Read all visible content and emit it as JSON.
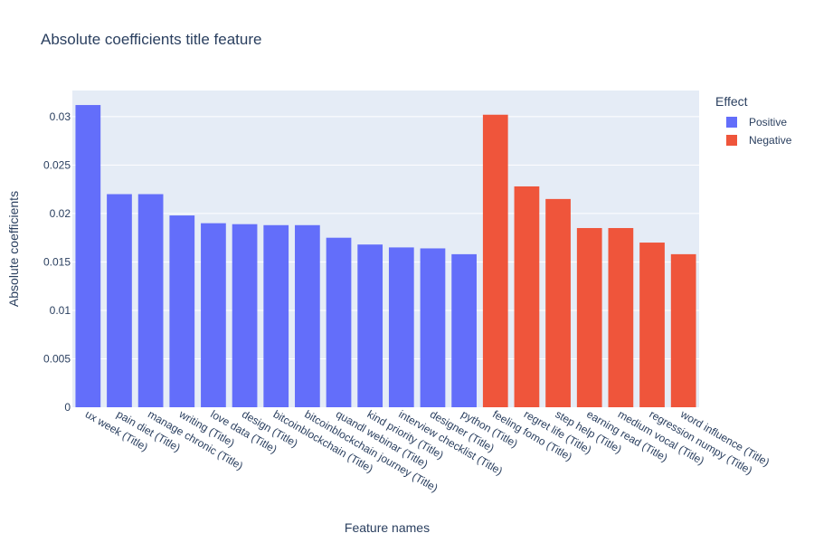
{
  "chart_data": {
    "type": "bar",
    "title": "Absolute coefficients title feature",
    "xlabel": "Feature names",
    "ylabel": "Absolute coefficients",
    "ylim": [
      0,
      0.0327
    ],
    "yticks": [
      {
        "value": 0,
        "label": "0"
      },
      {
        "value": 0.005,
        "label": "0.005"
      },
      {
        "value": 0.01,
        "label": "0.01"
      },
      {
        "value": 0.015,
        "label": "0.015"
      },
      {
        "value": 0.02,
        "label": "0.02"
      },
      {
        "value": 0.025,
        "label": "0.025"
      },
      {
        "value": 0.03,
        "label": "0.03"
      }
    ],
    "grid": true,
    "legend_title": "Effect",
    "legend_placement": "right-top",
    "series": [
      {
        "name": "Positive",
        "color": "#636efa",
        "categories": [
          "ux week (Title)",
          "pain diet (Title)",
          "manage chronic (Title)",
          "writing (Title)",
          "love data (Title)",
          "design (Title)",
          "bitcoinblockchain (Title)",
          "bitcoinblockchain journey (Title)",
          "quandl webinar (Title)",
          "kind priority (Title)",
          "interview checklist (Title)",
          "designer (Title)",
          "python (Title)"
        ],
        "values": [
          0.0312,
          0.022,
          0.022,
          0.0198,
          0.019,
          0.0189,
          0.0188,
          0.0188,
          0.0175,
          0.0168,
          0.0165,
          0.0164,
          0.0158
        ]
      },
      {
        "name": "Negative",
        "color": "#ef553b",
        "categories": [
          "feeling fomo (Title)",
          "regret life (Title)",
          "step help (Title)",
          "earning read (Title)",
          "medium vocal (Title)",
          "regression numpy (Title)",
          "word influence (Title)"
        ],
        "values": [
          0.0302,
          0.0228,
          0.0215,
          0.0185,
          0.0185,
          0.017,
          0.0158
        ]
      }
    ]
  }
}
